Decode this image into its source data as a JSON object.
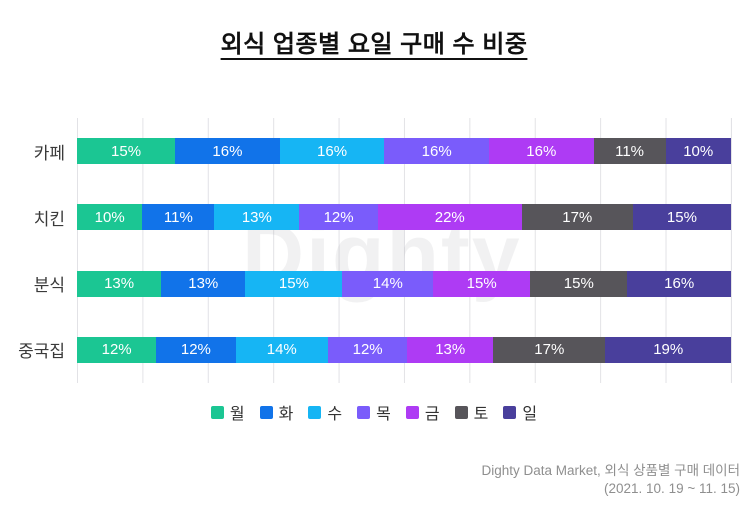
{
  "title": "외식 업종별 요일 구매 수 비중",
  "watermark": "Dighty",
  "footer": {
    "line1": "Dighty Data Market, 외식 상품별 구매 데이터",
    "line2": "(2021. 10. 19 ~ 11. 15)"
  },
  "chart_data": {
    "type": "bar",
    "variant": "horizontal-stacked",
    "title": "외식 업종별 요일 구매 수 비중",
    "categories": [
      "카페",
      "치킨",
      "분식",
      "중국집"
    ],
    "series": [
      {
        "name": "월",
        "color": "#1BC693",
        "values": [
          15,
          10,
          13,
          12
        ]
      },
      {
        "name": "화",
        "color": "#1173E9",
        "values": [
          16,
          11,
          13,
          12
        ]
      },
      {
        "name": "수",
        "color": "#16B5F4",
        "values": [
          16,
          13,
          15,
          14
        ]
      },
      {
        "name": "목",
        "color": "#7A5CFB",
        "values": [
          16,
          12,
          14,
          12
        ]
      },
      {
        "name": "금",
        "color": "#AE3BF4",
        "values": [
          16,
          22,
          15,
          13
        ]
      },
      {
        "name": "토",
        "color": "#57555A",
        "values": [
          11,
          17,
          15,
          17
        ]
      },
      {
        "name": "일",
        "color": "#493F9C",
        "values": [
          10,
          15,
          16,
          19
        ]
      }
    ],
    "value_suffix": "%",
    "value_label_color": "#ffffff",
    "grid": true,
    "grid_color": "#e2e2e6",
    "grid_interval_percent": 10,
    "legend_position": "bottom",
    "xlim": [
      0,
      100
    ]
  }
}
